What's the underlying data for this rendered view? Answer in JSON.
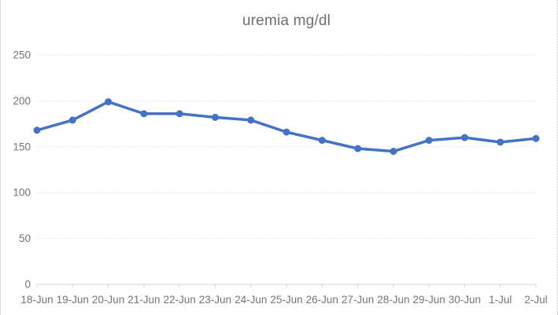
{
  "chart_data": {
    "type": "line",
    "title": "uremia mg/dl",
    "categories": [
      "18-Jun",
      "19-Jun",
      "20-Jun",
      "21-Jun",
      "22-Jun",
      "23-Jun",
      "24-Jun",
      "25-Jun",
      "26-Jun",
      "27-Jun",
      "28-Jun",
      "29-Jun",
      "30-Jun",
      "1-Jul",
      "2-Jul"
    ],
    "series": [
      {
        "name": "uremia",
        "values": [
          168,
          179,
          199,
          186,
          186,
          182,
          179,
          166,
          157,
          148,
          145,
          157,
          160,
          155,
          159
        ]
      }
    ],
    "xlabel": "",
    "ylabel": "",
    "ylim": [
      0,
      250
    ],
    "yticks": [
      0,
      50,
      100,
      150,
      200,
      250
    ],
    "grid": "horizontal-dotted",
    "legend": "none",
    "colors": {
      "series": "#4472C4",
      "title_text": "#6e6e6e",
      "axis_text": "#757575",
      "gridline": "#d9d9d9",
      "axis_line": "#d4d4d4",
      "page_border_left": "#dcdcdc",
      "page_border_right": "#c4c4c4",
      "background": "#ffffff"
    }
  }
}
